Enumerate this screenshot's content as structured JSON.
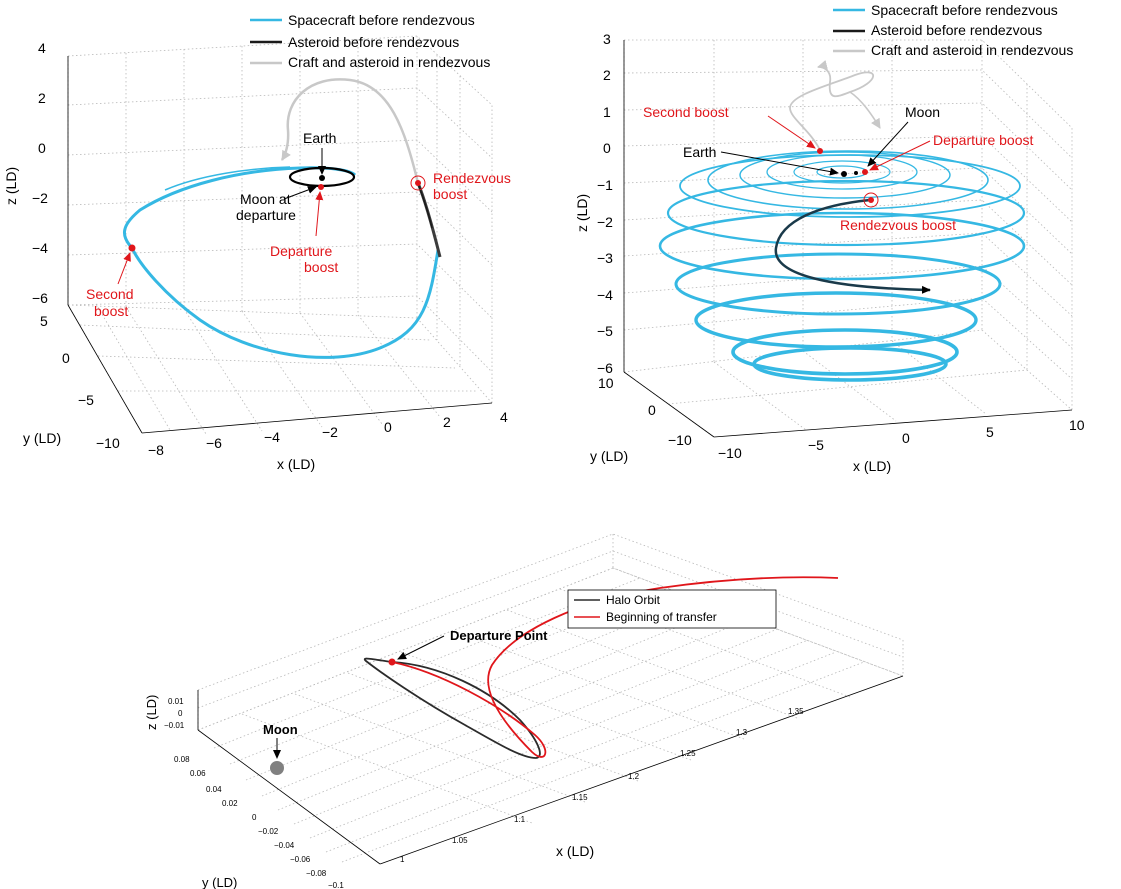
{
  "colors": {
    "spacecraft": "#35b8e3",
    "asteroid": "#1a1a1a",
    "rendezvous": "#c8c8c8",
    "halo": "#2b2b2b",
    "transfer": "#e0161b",
    "boost": "#e0161b",
    "moon_ball": "#808080"
  },
  "chart_data": [
    {
      "id": "transfer-3d",
      "type": "line",
      "xlabel": "x (LD)",
      "ylabel": "y (LD)",
      "zlabel": "z (LD)",
      "x_ticks": [
        "−8",
        "−6",
        "−4",
        "−2",
        "0",
        "2",
        "4"
      ],
      "y_ticks": [
        "−10",
        "−5",
        "0",
        "5"
      ],
      "z_ticks": [
        "−6",
        "−4",
        "−2",
        "0",
        "2",
        "4"
      ],
      "xlim": [
        -8,
        4
      ],
      "ylim": [
        -10,
        5
      ],
      "zlim": [
        -6,
        4
      ],
      "legend": [
        "Spacecraft before rendezvous",
        "Asteroid before rendezvous",
        "Craft and asteroid in rendezvous"
      ],
      "legend_position": "top-right",
      "grid": true,
      "annotations": [
        "Earth",
        "Moon at",
        "departure",
        "Departure",
        "boost",
        "Second",
        "boost",
        "Rendezvous",
        "boost"
      ]
    },
    {
      "id": "spiral-3d",
      "type": "line",
      "xlabel": "x (LD)",
      "ylabel": "y (LD)",
      "zlabel": "z (LD)",
      "x_ticks": [
        "−10",
        "−5",
        "0",
        "5",
        "10"
      ],
      "y_ticks": [
        "−10",
        "0",
        "10"
      ],
      "z_ticks": [
        "−6",
        "−5",
        "−4",
        "−3",
        "−2",
        "−1",
        "0",
        "1",
        "2",
        "3"
      ],
      "xlim": [
        -10,
        10
      ],
      "ylim": [
        -10,
        10
      ],
      "zlim": [
        -6,
        3
      ],
      "legend": [
        "Spacecraft before rendezvous",
        "Asteroid before rendezvous",
        "Craft and asteroid in rendezvous"
      ],
      "legend_position": "top-right",
      "grid": true,
      "annotations": [
        "Second boost",
        "Moon",
        "Departure boost",
        "Earth",
        "Rendezvous boost"
      ]
    },
    {
      "id": "halo-3d",
      "type": "line",
      "xlabel": "x (LD)",
      "ylabel": "y (LD)",
      "zlabel": "z (LD)",
      "x_ticks": [
        "1",
        "1.05",
        "1.1",
        "1.15",
        "1.2",
        "1.25",
        "1.3",
        "1.35"
      ],
      "y_ticks": [
        "−0.1",
        "−0.08",
        "−0.06",
        "−0.04",
        "−0.02",
        "0",
        "0.02",
        "0.04",
        "0.06",
        "0.08"
      ],
      "z_ticks": [
        "−0.01",
        "0",
        "0.01"
      ],
      "xlim": [
        1,
        1.38
      ],
      "ylim": [
        -0.11,
        0.09
      ],
      "zlim": [
        -0.015,
        0.015
      ],
      "legend": [
        "Halo Orbit",
        "Beginning of transfer"
      ],
      "legend_position": "top-right",
      "grid": true,
      "annotations": [
        "Departure Point",
        "Moon"
      ]
    }
  ]
}
